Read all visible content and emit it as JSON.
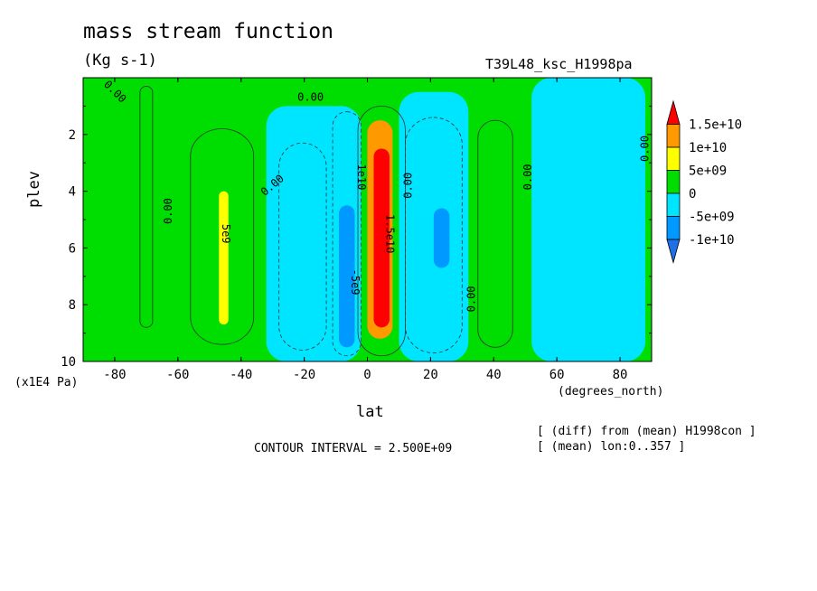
{
  "chart_data": {
    "type": "heatmap",
    "title": "mass stream function",
    "units": "(Kg s-1)",
    "run_name": "T39L48_ksc_H1998pa",
    "xlabel": "lat",
    "xunits": "(degrees_north)",
    "ylabel": "plev",
    "yunits": "(x1E4 Pa)",
    "xlim": [
      -90,
      90
    ],
    "ylim": [
      10,
      0
    ],
    "x_ticks": [
      "-80",
      "-60",
      "-40",
      "-20",
      "0",
      "20",
      "40",
      "60",
      "80"
    ],
    "y_ticks": [
      "2",
      "4",
      "6",
      "8",
      "10"
    ],
    "contour_interval_text": "CONTOUR INTERVAL = 2.500E+09",
    "notes": [
      "[ (diff) from (mean) H1998con ]",
      "[ (mean) lon:0..357 ]"
    ],
    "contour_labels": [
      "0.00",
      "0.00",
      "0.00",
      "0.00",
      "0.00",
      "0.00",
      "0.00",
      "0.00",
      "5e9",
      "1e10",
      "-5e9",
      "1.5e10"
    ],
    "colorbar": {
      "labels": [
        "1.5e+10",
        "1e+10",
        "5e+09",
        "0",
        "-5e+09",
        "-1e+10"
      ],
      "colors": [
        "#ff0000",
        "#ff9900",
        "#ffff00",
        "#00dd00",
        "#00e5ff",
        "#0099ff",
        "#1e6fe8"
      ]
    },
    "field_regions": [
      {
        "level": "0 to 5e9",
        "color": "#00dd00",
        "lat_range": [
          -90,
          90
        ],
        "plev_range": [
          0,
          10
        ]
      },
      {
        "level": "-5e9 to 0",
        "color": "#00e5ff",
        "lat_range": [
          -32,
          -2
        ],
        "plev_range": [
          1,
          10
        ]
      },
      {
        "level": "-5e9 to 0",
        "color": "#00e5ff",
        "lat_range": [
          10,
          32
        ],
        "plev_range": [
          0.5,
          10
        ]
      },
      {
        "level": "-5e9 to 0",
        "color": "#00e5ff",
        "lat_range": [
          52,
          88
        ],
        "plev_range": [
          0,
          10
        ]
      },
      {
        "level": "-1e10 to -5e9",
        "color": "#0099ff",
        "lat_range": [
          -9,
          -4
        ],
        "plev_range": [
          4.5,
          9.5
        ]
      },
      {
        "level": "-1e10 to -5e9",
        "color": "#0099ff",
        "lat_range": [
          21,
          26
        ],
        "plev_range": [
          4.6,
          6.7
        ]
      },
      {
        "level": "5e9 to 1e10",
        "color": "#ffff00",
        "lat_range": [
          -47,
          -44
        ],
        "plev_range": [
          4,
          8.7
        ]
      },
      {
        "level": "1e10 to 1.5e10",
        "color": "#ff9900",
        "lat_range": [
          0,
          8
        ],
        "plev_range": [
          1.5,
          9.2
        ]
      },
      {
        "level": ">1.5e10",
        "color": "#ff0000",
        "lat_range": [
          2,
          7
        ],
        "plev_range": [
          2.5,
          8.8
        ]
      }
    ]
  }
}
